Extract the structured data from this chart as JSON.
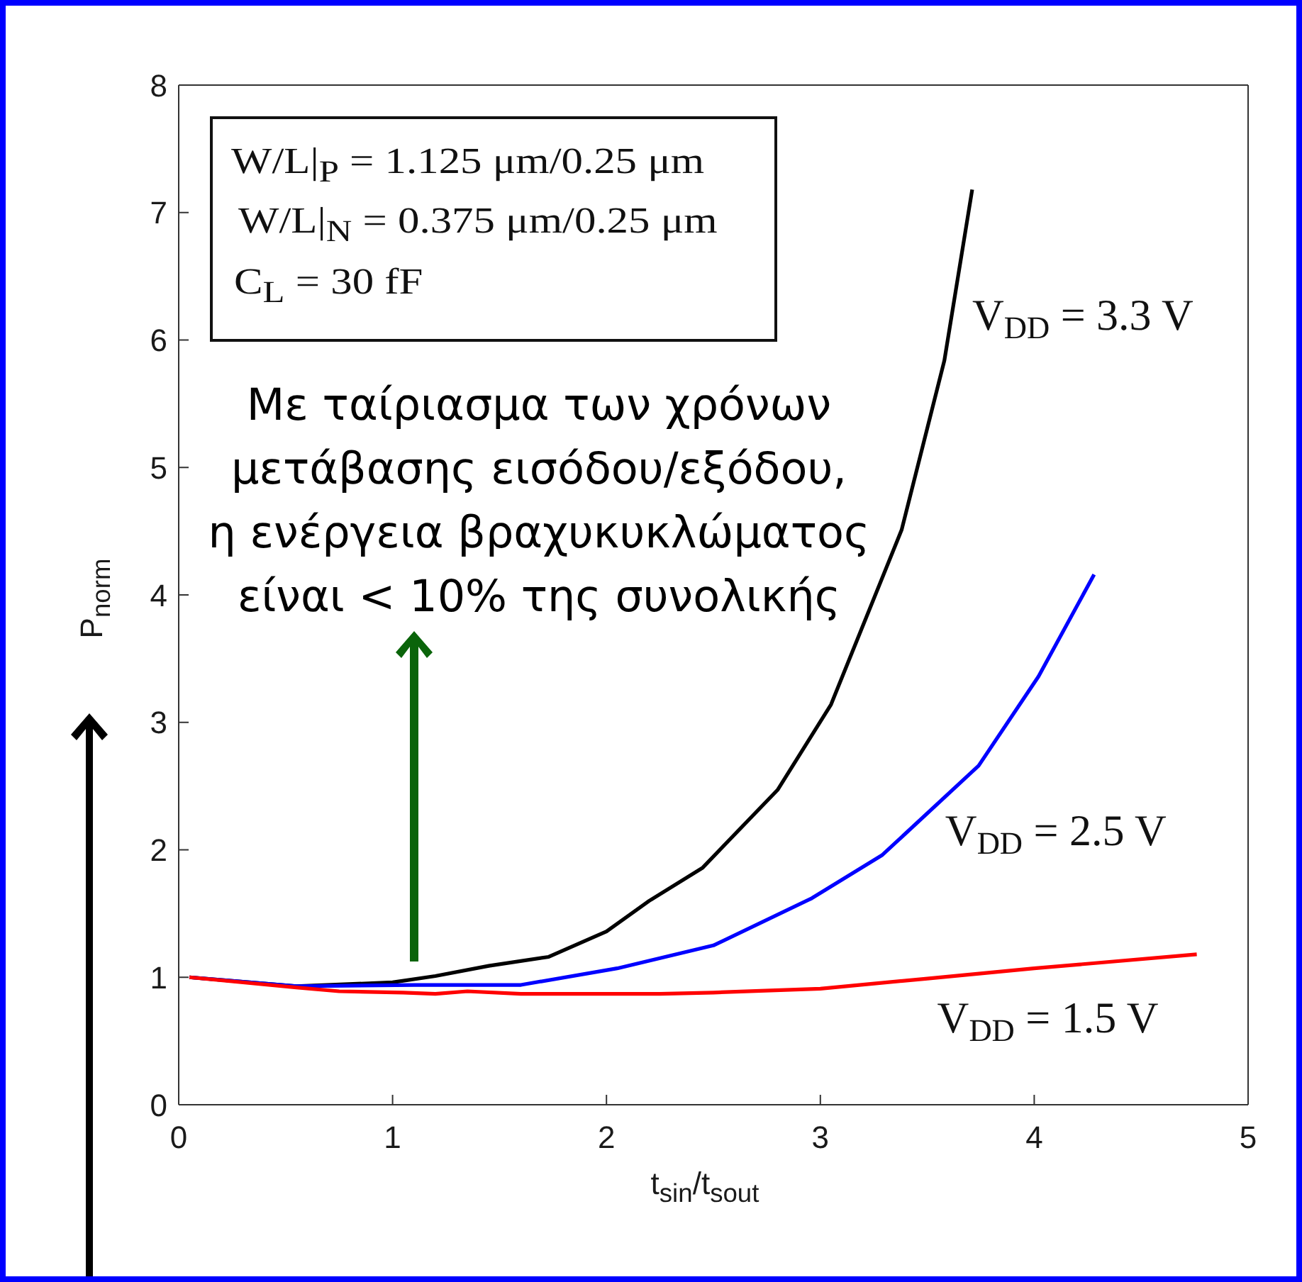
{
  "chart_data": {
    "type": "line",
    "xlabel": "t$_{sin}$/t$_{sout}$",
    "ylabel": "P$_{norm}$",
    "xlim": [
      0,
      5
    ],
    "xticks": [
      0,
      1,
      2,
      3,
      4,
      5
    ],
    "ylim": [
      0,
      8
    ],
    "yticks": [
      0,
      1,
      2,
      3,
      4,
      5,
      6,
      7,
      8
    ],
    "series": [
      {
        "name": "V$_{DD}$ = 3.3 V",
        "color": "#000000",
        "x": [
          0.05,
          0.55,
          1.0,
          1.2,
          1.45,
          1.73,
          2.0,
          2.2,
          2.45,
          2.8,
          3.05,
          3.38,
          3.58,
          3.71
        ],
        "values": [
          1.0,
          0.93,
          0.96,
          1.01,
          1.09,
          1.16,
          1.36,
          1.6,
          1.86,
          2.47,
          3.14,
          4.51,
          5.84,
          7.18
        ]
      },
      {
        "name": "V$_{DD}$ = 2.5 V",
        "color": "#0000ff",
        "x": [
          0.05,
          0.55,
          1.1,
          1.6,
          2.05,
          2.5,
          2.96,
          3.29,
          3.74,
          4.02,
          4.28
        ],
        "values": [
          1.0,
          0.93,
          0.94,
          0.94,
          1.07,
          1.25,
          1.62,
          1.96,
          2.66,
          3.36,
          4.16
        ]
      },
      {
        "name": "V$_{DD}$ = 1.5 V",
        "color": "#ff0000",
        "x": [
          0.05,
          0.55,
          0.75,
          1.05,
          1.2,
          1.35,
          1.6,
          2.25,
          2.5,
          3.0,
          3.5,
          4.0,
          4.76
        ],
        "values": [
          1.0,
          0.92,
          0.89,
          0.88,
          0.87,
          0.89,
          0.87,
          0.87,
          0.88,
          0.91,
          0.99,
          1.07,
          1.18
        ]
      }
    ],
    "annotations": [
      "W/L|$_{P}$ = 1.125 μm/0.25 μm",
      "W/L|$_{N}$ = 0.375 μm/0.25 μm",
      "C$_{L}$ = 30 fF",
      "Με ταίριασμα των χρόνων\nμετάβασης εισόδου/εξόδου,\nη ενέργεια βραχυκυκλώματος\nείναι < 10% της συνολικής"
    ]
  }
}
